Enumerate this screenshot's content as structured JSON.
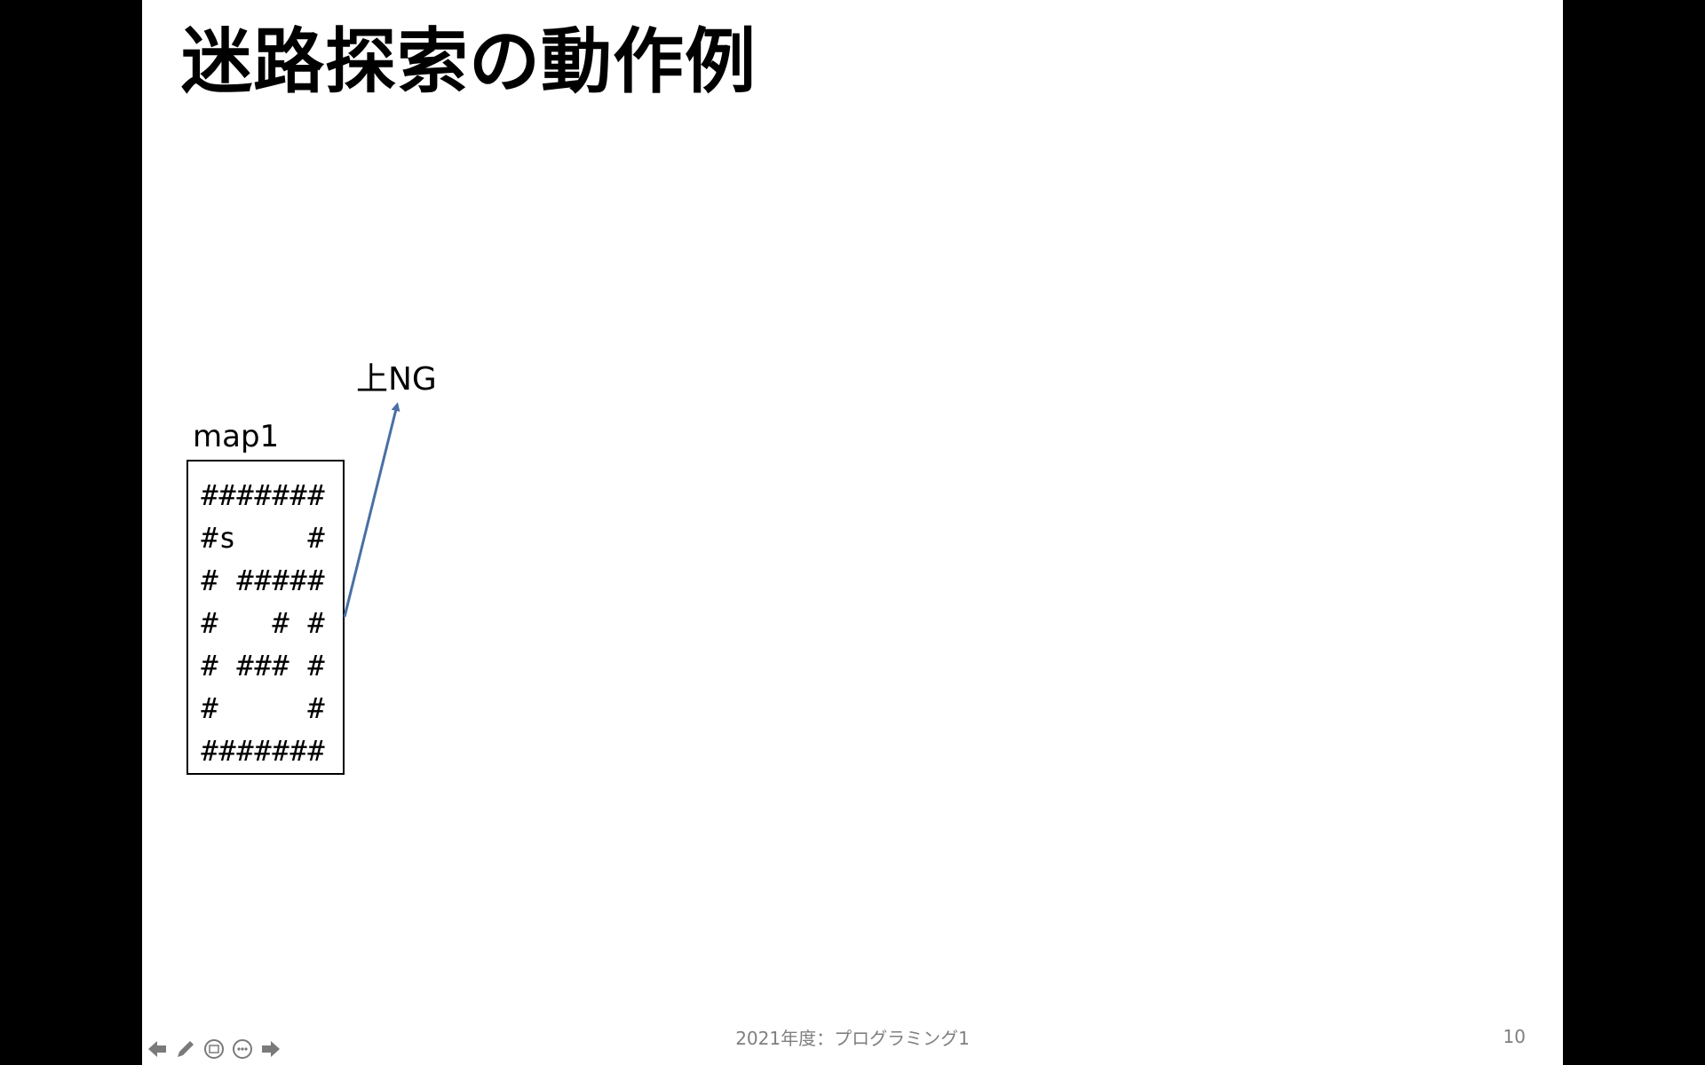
{
  "slide": {
    "title": "迷路探索の動作例",
    "map_label": "map1",
    "map_rows": [
      [
        "#",
        "#",
        "#",
        "#",
        "#",
        "#",
        "#"
      ],
      [
        "#",
        "s",
        " ",
        " ",
        " ",
        " ",
        "#"
      ],
      [
        "#",
        " ",
        "#",
        "#",
        "#",
        "#",
        "#"
      ],
      [
        "#",
        " ",
        " ",
        " ",
        "#",
        " ",
        "#"
      ],
      [
        "#",
        " ",
        "#",
        "#",
        "#",
        " ",
        "#"
      ],
      [
        "#",
        " ",
        " ",
        " ",
        " ",
        " ",
        "#"
      ],
      [
        "#",
        "#",
        "#",
        "#",
        "#",
        "#",
        "#"
      ]
    ],
    "annotation": "上NG",
    "arrow_color": "#4a6fa5"
  },
  "footer": {
    "course": "2021年度：プログラミング1",
    "page": "10"
  },
  "toolbar": {
    "icons": [
      "arrow-left-icon",
      "pen-icon",
      "subtitles-icon",
      "more-icon",
      "arrow-right-icon"
    ]
  }
}
